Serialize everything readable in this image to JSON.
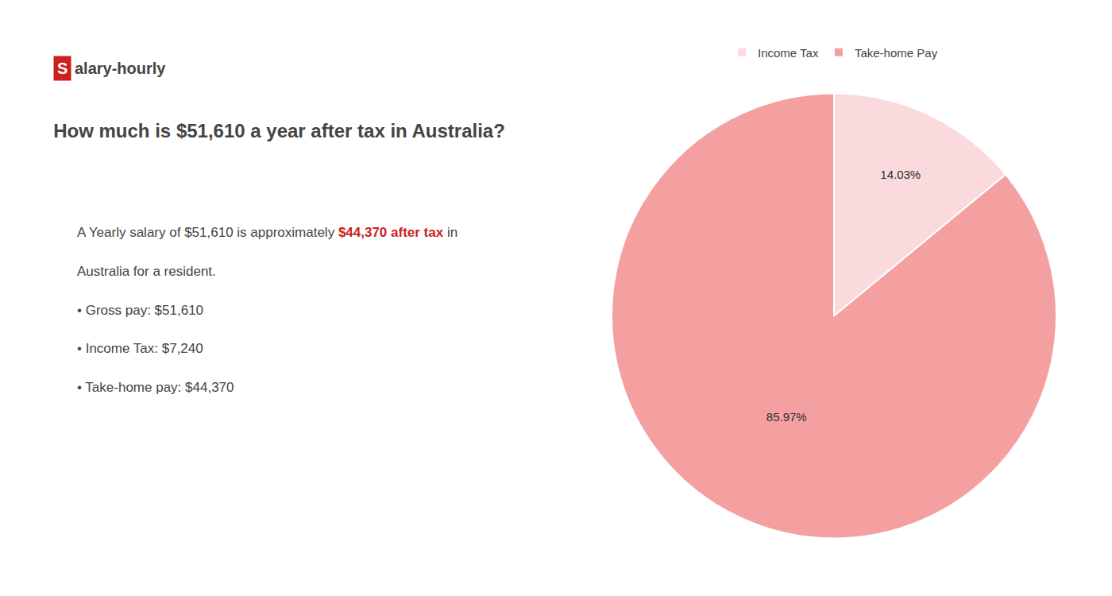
{
  "chart_data": {
    "type": "pie",
    "title": "How much is $51,610 a year after tax in Australia?",
    "categories": [
      "Income Tax",
      "Take-home Pay"
    ],
    "values": [
      14.03,
      85.97
    ],
    "value_labels": [
      "14.03%",
      "85.97%"
    ],
    "colors": [
      "#fadadd",
      "#f4a0a0"
    ],
    "data_labels": true,
    "legend": "top",
    "annotations": [
      [
        {
          "text": "S",
          "color": "#ffffff",
          "bgcolor": "#cc1f1f",
          "bold": true
        },
        {
          "text": "alary-hourly",
          "bold": true
        }
      ],
      [
        {
          "text": "A Yearly salary of $51,610 is approximately "
        },
        {
          "text": "$44,370 after tax",
          "color": "#cc1f1f",
          "bold": true
        },
        {
          "text": " in"
        }
      ],
      [
        {
          "text": "Australia for a resident."
        }
      ],
      [
        {
          "text": "•"
        },
        {
          "text": " Gross pay: $51,610"
        }
      ],
      [
        {
          "text": "•"
        },
        {
          "text": " Income Tax: $7,240"
        }
      ],
      [
        {
          "text": "•"
        },
        {
          "text": " Take-home pay: $44,370"
        }
      ]
    ]
  }
}
